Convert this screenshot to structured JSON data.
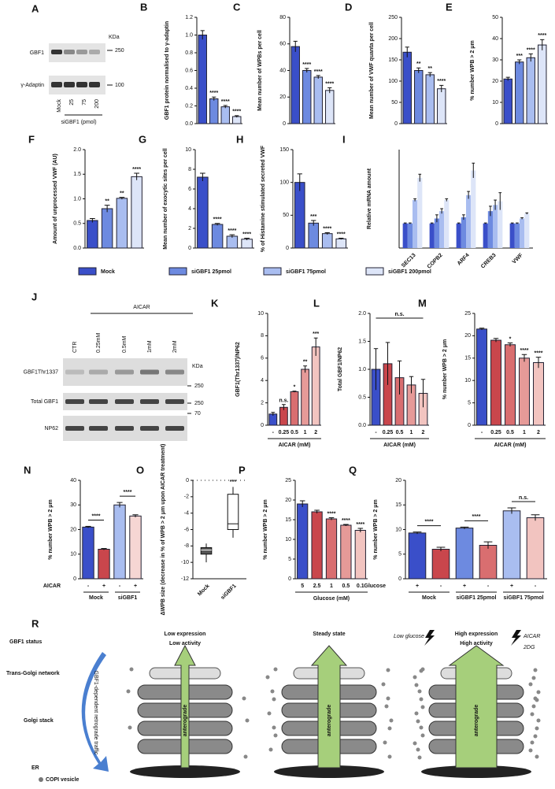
{
  "chart_data": [
    {
      "type": "bar",
      "panel": "B",
      "ylabel": "GBF1 protein normalised to γ-adaptin",
      "values": [
        1.0,
        0.28,
        0.19,
        0.08
      ],
      "errors": [
        0.05,
        0.02,
        0.015,
        0.01
      ],
      "annotations": [
        null,
        "****",
        "****",
        "****"
      ],
      "colors": [
        "#3a4fc9",
        "#6d8ae0",
        "#a9bdf0",
        "#dde5f8"
      ],
      "ylim": [
        0,
        1.2
      ],
      "yticks": [
        {
          "value": 0,
          "label": "0.0"
        },
        0.2,
        0.4,
        0.6,
        0.8,
        {
          "value": 1,
          "label": "1.0"
        },
        1.2
      ]
    },
    {
      "type": "bar",
      "panel": "C",
      "ylabel": "Mean number of WPBs per cell",
      "values": [
        58,
        40,
        35,
        25
      ],
      "errors": [
        4,
        1.5,
        1.2,
        2
      ],
      "annotations": [
        null,
        "****",
        "****",
        "****"
      ],
      "colors": [
        "#3a4fc9",
        "#6d8ae0",
        "#a9bdf0",
        "#dde5f8"
      ],
      "ylim": [
        0,
        80
      ],
      "yticks": [
        0,
        20,
        40,
        60,
        80
      ]
    },
    {
      "type": "bar",
      "panel": "D",
      "ylabel": "Mean number of VWF quanta per cell",
      "values": [
        168,
        125,
        115,
        82
      ],
      "errors": [
        12,
        6,
        5,
        8
      ],
      "annotations": [
        null,
        "**",
        "**",
        "****"
      ],
      "colors": [
        "#3a4fc9",
        "#6d8ae0",
        "#a9bdf0",
        "#dde5f8"
      ],
      "ylim": [
        0,
        250
      ],
      "yticks": [
        0,
        50,
        100,
        150,
        200,
        250
      ]
    },
    {
      "type": "bar",
      "panel": "E",
      "ylabel": "% number WPB > 2 μm",
      "values": [
        21,
        29,
        31,
        37
      ],
      "errors": [
        0.8,
        1,
        1.8,
        2.5
      ],
      "annotations": [
        null,
        "***",
        "****",
        "****"
      ],
      "colors": [
        "#3a4fc9",
        "#6d8ae0",
        "#a9bdf0",
        "#dde5f8"
      ],
      "ylim": [
        0,
        50
      ],
      "yticks": [
        0,
        10,
        20,
        30,
        40,
        50
      ]
    },
    {
      "type": "bar",
      "panel": "F",
      "ylabel": "Amount of unprocessed VWF (AU)",
      "values": [
        0.56,
        0.8,
        1.01,
        1.45
      ],
      "errors": [
        0.04,
        0.07,
        0.02,
        0.07
      ],
      "annotations": [
        null,
        "**",
        "**",
        "****"
      ],
      "colors": [
        "#3a4fc9",
        "#6d8ae0",
        "#a9bdf0",
        "#dde5f8"
      ],
      "ylim": [
        0,
        2
      ],
      "yticks": [
        {
          "value": 0,
          "label": "0.0"
        },
        0.5,
        {
          "value": 1,
          "label": "1.0"
        },
        1.5,
        {
          "value": 2,
          "label": "2.0"
        }
      ]
    },
    {
      "type": "bar",
      "panel": "G",
      "ylabel": "Mean number of exocytic sites per cell",
      "values": [
        7.2,
        2.4,
        1.2,
        0.9
      ],
      "errors": [
        0.4,
        0.1,
        0.15,
        0.1
      ],
      "annotations": [
        null,
        "****",
        "****",
        "****"
      ],
      "colors": [
        "#3a4fc9",
        "#6d8ae0",
        "#a9bdf0",
        "#dde5f8"
      ],
      "ylim": [
        0,
        10
      ],
      "yticks": [
        0,
        2,
        4,
        6,
        8,
        10
      ]
    },
    {
      "type": "bar",
      "panel": "H",
      "ylabel": "% of Histamine stimulated secreted VWF",
      "values": [
        100,
        38,
        22,
        14
      ],
      "errors": [
        13,
        4,
        1.5,
        1
      ],
      "annotations": [
        null,
        "***",
        "****",
        "****"
      ],
      "colors": [
        "#3a4fc9",
        "#6d8ae0",
        "#a9bdf0",
        "#dde5f8"
      ],
      "ylim": [
        0,
        150
      ],
      "yticks": [
        0,
        50,
        100,
        150
      ]
    },
    {
      "type": "grouped-bar",
      "panel": "I",
      "ylabel": "Relative mRNA amount",
      "categories": [
        "SEC13",
        "COPB2",
        "ARF4",
        "CREB3",
        "VWF"
      ],
      "ylim": [
        0,
        4
      ],
      "series": [
        {
          "name": "Mock",
          "color": "#3a4fc9",
          "values": [
            1,
            1,
            1,
            1,
            1
          ],
          "errors": [
            0.02,
            0.02,
            0.02,
            0.02,
            0.02
          ]
        },
        {
          "name": "siGBF1  25pmol",
          "color": "#6d8ae0",
          "values": [
            1,
            1.2,
            1.25,
            1.5,
            1
          ],
          "errors": [
            0.02,
            0.15,
            0.1,
            0.2,
            0.02
          ]
        },
        {
          "name": "siGBF1  75pmol",
          "color": "#a9bdf0",
          "values": [
            1.95,
            1.5,
            2.15,
            1.75,
            1.2
          ],
          "errors": [
            0.05,
            0.1,
            0.15,
            0.2,
            0.03
          ]
        },
        {
          "name": "siGBF1  200pmol",
          "color": "#dde5f8",
          "values": [
            2.85,
            1.95,
            3.15,
            1.9,
            1.4
          ],
          "errors": [
            0.15,
            0.05,
            0.3,
            0.35,
            0.03
          ]
        }
      ]
    },
    {
      "type": "bar",
      "panel": "K",
      "ylabel": "GBF1(Thr1337)/NP62",
      "categories": [
        "-",
        "0.25",
        "0.5",
        "1",
        "2"
      ],
      "xlabel": "AICAR (mM)",
      "values": [
        1,
        1.6,
        3,
        5,
        7
      ],
      "errors": [
        0.15,
        0.25,
        0.05,
        0.3,
        0.8
      ],
      "annotations": [
        null,
        "n.s.",
        "*",
        "**",
        "***"
      ],
      "colors": [
        "#3a4fc9",
        "#c9464c",
        "#d96e70",
        "#e69a98",
        "#f2c4c0"
      ],
      "ylim": [
        0,
        10
      ],
      "yticks": [
        0,
        2,
        4,
        6,
        8,
        10
      ]
    },
    {
      "type": "bar",
      "panel": "L",
      "ylabel": "Total GBF1/NP62",
      "categories": [
        "-",
        "0.25",
        "0.5",
        "1",
        "2"
      ],
      "xlabel": "AICAR (mM)",
      "values": [
        1,
        1.1,
        0.85,
        0.72,
        0.57
      ],
      "errors": [
        0.37,
        0.38,
        0.3,
        0.15,
        0.25
      ],
      "brackets": [
        "n.s."
      ],
      "colors": [
        "#3a4fc9",
        "#c9464c",
        "#d96e70",
        "#e69a98",
        "#f2c4c0"
      ],
      "ylim": [
        0,
        2
      ],
      "yticks": [
        {
          "value": 0,
          "label": "0.0"
        },
        0.5,
        {
          "value": 1,
          "label": "1.0"
        },
        1.5,
        {
          "value": 2,
          "label": "2.0"
        }
      ]
    },
    {
      "type": "bar",
      "panel": "M",
      "ylabel": "% number WPB > 2 μm",
      "categories": [
        "-",
        "0.25",
        "0.5",
        "1",
        "2"
      ],
      "xlabel": "AICAR (mM)",
      "values": [
        21.5,
        19,
        18,
        15,
        14
      ],
      "errors": [
        0.2,
        0.4,
        0.4,
        0.8,
        1.2
      ],
      "annotations": [
        null,
        null,
        "*",
        "****",
        "****"
      ],
      "colors": [
        "#3a4fc9",
        "#c9464c",
        "#d96e70",
        "#e69a98",
        "#f2c4c0"
      ],
      "ylim": [
        0,
        25
      ],
      "yticks": [
        0,
        5,
        10,
        15,
        20,
        25
      ]
    },
    {
      "type": "bar",
      "panel": "N",
      "ylabel": "% number WPB > 2 μm",
      "categories": [
        "-",
        "+",
        "-",
        "+"
      ],
      "xlabel": "AICAR",
      "groups": [
        "Mock",
        "siGBF1"
      ],
      "values": [
        21,
        12,
        30,
        25.5
      ],
      "errors": [
        0.3,
        0.3,
        1,
        0.5
      ],
      "brackets": [
        "****",
        "****"
      ],
      "colors": [
        "#3a4fc9",
        "#c9464c",
        "#a9bdf0",
        "#f6d6d3"
      ],
      "ylim": [
        0,
        40
      ],
      "yticks": [
        0,
        10,
        20,
        30,
        40
      ]
    },
    {
      "type": "box",
      "panel": "O",
      "ylabel": "ΔWPB size (decrease in % of WPB > 2 μm upon AICAR treatment)",
      "categories": [
        "Mock",
        "siGBF1"
      ],
      "annotations": [
        null,
        "***"
      ],
      "boxes": [
        {
          "min": -10,
          "q1": -9,
          "median": -8.5,
          "q3": -8.2,
          "max": -7.7
        },
        {
          "min": -7,
          "q1": -6,
          "median": -5.3,
          "q3": -1.7,
          "max": -0.8
        }
      ],
      "ylim": [
        -12,
        0
      ],
      "yticks": [
        0,
        -2,
        -4,
        -6,
        -8,
        -10,
        -12
      ]
    },
    {
      "type": "bar",
      "panel": "P",
      "ylabel": "% number WPB > 2 μm",
      "categories": [
        "5",
        "2.5",
        "1",
        "0.5",
        "0.1"
      ],
      "xlabel": "Glucose (mM)",
      "values": [
        19,
        17,
        15.2,
        13.6,
        12.3
      ],
      "errors": [
        0.8,
        0.4,
        0.3,
        0.2,
        0.5
      ],
      "annotations": [
        null,
        null,
        "****",
        "****",
        "****"
      ],
      "colors": [
        "#3a4fc9",
        "#c9464c",
        "#d96e70",
        "#e69a98",
        "#f2c4c0"
      ],
      "ylim": [
        0,
        25
      ],
      "yticks": [
        0,
        5,
        10,
        15,
        20,
        25
      ]
    },
    {
      "type": "bar",
      "panel": "Q",
      "ylabel": "% number WPB > 2 μm",
      "categories": [
        "+",
        "-",
        "+",
        "-",
        "+",
        "-"
      ],
      "xlabel": "Glucose",
      "groups": [
        "Mock",
        "siGBF1 25pmol",
        "siGBF1 75pmol"
      ],
      "values": [
        9.3,
        6,
        10.3,
        6.8,
        13.8,
        12.4
      ],
      "errors": [
        0.2,
        0.4,
        0.2,
        0.7,
        0.6,
        0.6
      ],
      "brackets": [
        "****",
        "****",
        "n.s."
      ],
      "colors": [
        "#3a4fc9",
        "#c9464c",
        "#6d8ae0",
        "#d96e70",
        "#a9bdf0",
        "#f2c4c0"
      ],
      "ylim": [
        0,
        20
      ],
      "yticks": [
        0,
        5,
        10,
        15,
        20
      ]
    }
  ],
  "blots": {
    "a": {
      "panel": "A",
      "rows": [
        "GBF1",
        "γ-Adaptin"
      ],
      "kda": "KDa",
      "markers": [
        "250",
        "100"
      ],
      "lanes": [
        "Mock",
        "25",
        "75",
        "200"
      ],
      "lane_label": "siGBF1 (pmol)"
    },
    "j": {
      "panel": "J",
      "treatment": "AICAR",
      "lanes": [
        "CTR",
        "0.25mM",
        "0.5mM",
        "1mM",
        "2mM"
      ],
      "rows": [
        "GBF1Thr1337",
        "Total GBF1",
        "NP62"
      ],
      "kda": "KDa",
      "markers": [
        "250",
        "250",
        "70"
      ]
    }
  },
  "diagram": {
    "panel": "R",
    "status": "GBF1 status",
    "tgn": "Trans-Golgi network",
    "golgi": "Golgi stack",
    "er": "ER",
    "retro": "GBF1-dependent retrograde traffic",
    "copi": "COPI vesicle",
    "states": [
      {
        "title": "Low expression",
        "subtitle": "Low activity",
        "arrow": "anterograde"
      },
      {
        "title": "Steady state",
        "arrow": "anterograde"
      },
      {
        "title": "High expression",
        "subtitle": "High activity",
        "arrow": "anterograde"
      }
    ],
    "low_glucose": "Low glucose",
    "aicar": "AICAR",
    "dg": "2DG"
  }
}
